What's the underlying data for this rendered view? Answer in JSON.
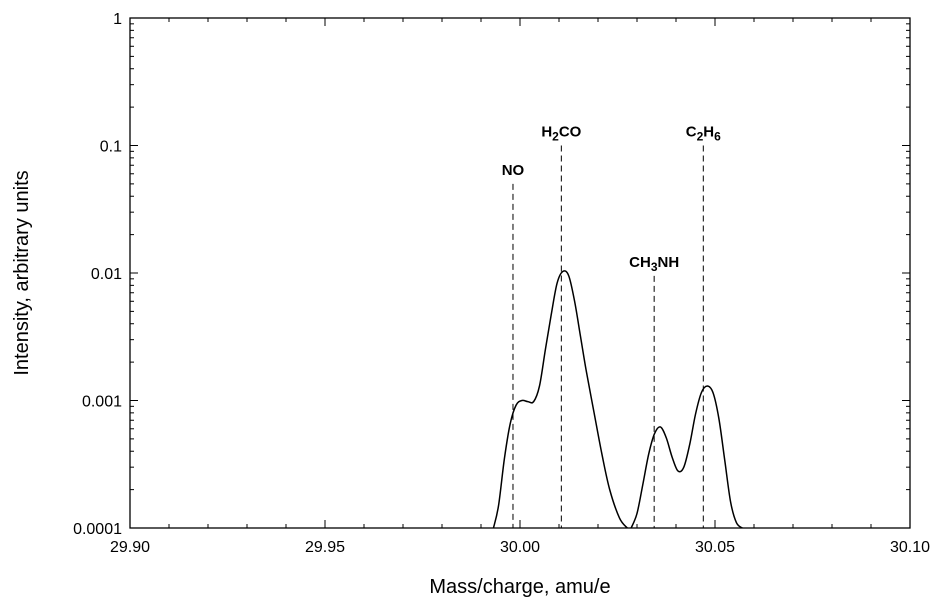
{
  "chart_data": {
    "type": "line",
    "xlabel": "Mass/charge, amu/e",
    "ylabel": "Intensity, arbitrary units",
    "xlim": [
      29.9,
      30.1
    ],
    "ylim": [
      0.0001,
      1
    ],
    "y_scale": "log",
    "grid": false,
    "x_ticks": [
      {
        "value": 29.9,
        "label": "29.90"
      },
      {
        "value": 29.95,
        "label": "29.95"
      },
      {
        "value": 30.0,
        "label": "30.00"
      },
      {
        "value": 30.05,
        "label": "30.05"
      },
      {
        "value": 30.1,
        "label": "30.10"
      }
    ],
    "y_ticks": [
      {
        "value": 0.0001,
        "label": "0.0001"
      },
      {
        "value": 0.001,
        "label": "0.001"
      },
      {
        "value": 0.01,
        "label": "0.01"
      },
      {
        "value": 0.1,
        "label": "0.1"
      },
      {
        "value": 1,
        "label": "1"
      }
    ],
    "series": [
      {
        "x": [
          29.9932,
          29.9945,
          29.996,
          29.9975,
          29.999,
          30.0005,
          30.002,
          30.0035,
          30.005,
          30.0065,
          30.008,
          30.0095,
          30.011,
          30.0125,
          30.014,
          30.0155,
          30.017,
          30.019,
          30.021,
          30.023,
          30.0255,
          30.0275
        ],
        "y": [
          0.0001,
          0.00015,
          0.00035,
          0.00066,
          0.00092,
          0.001,
          0.00098,
          0.00098,
          0.0013,
          0.0025,
          0.0047,
          0.0083,
          0.0103,
          0.0095,
          0.006,
          0.0032,
          0.0017,
          0.0008,
          0.00038,
          0.0002,
          0.00012,
          0.0001
        ]
      },
      {
        "x": [
          30.0285,
          30.03,
          30.0315,
          30.033,
          30.0345,
          30.036,
          30.0375,
          30.039,
          30.0405,
          30.042,
          30.0435,
          30.045,
          30.0465,
          30.048,
          30.0495,
          30.051,
          30.0525,
          30.054,
          30.0555,
          30.057
        ],
        "y": [
          0.0001,
          0.00013,
          0.00022,
          0.00038,
          0.00055,
          0.00062,
          0.00051,
          0.00036,
          0.00028,
          0.0003,
          0.00045,
          0.00078,
          0.00115,
          0.0013,
          0.00115,
          0.00072,
          0.00034,
          0.00016,
          0.00011,
          0.0001
        ]
      }
    ],
    "peak_markers": [
      {
        "parts": [
          {
            "text": "NO",
            "sub": false
          }
        ],
        "x": 29.9982,
        "top": 0.05
      },
      {
        "parts": [
          {
            "text": "H",
            "sub": false
          },
          {
            "text": "2",
            "sub": true
          },
          {
            "text": "CO",
            "sub": false
          }
        ],
        "x": 30.0106,
        "top": 0.1
      },
      {
        "parts": [
          {
            "text": "CH",
            "sub": false
          },
          {
            "text": "3",
            "sub": true
          },
          {
            "text": "NH",
            "sub": false
          }
        ],
        "x": 30.0344,
        "top": 0.0095
      },
      {
        "parts": [
          {
            "text": "C",
            "sub": false
          },
          {
            "text": "2",
            "sub": true
          },
          {
            "text": "H",
            "sub": false
          },
          {
            "text": "6",
            "sub": true
          }
        ],
        "x": 30.047,
        "top": 0.1
      }
    ]
  }
}
